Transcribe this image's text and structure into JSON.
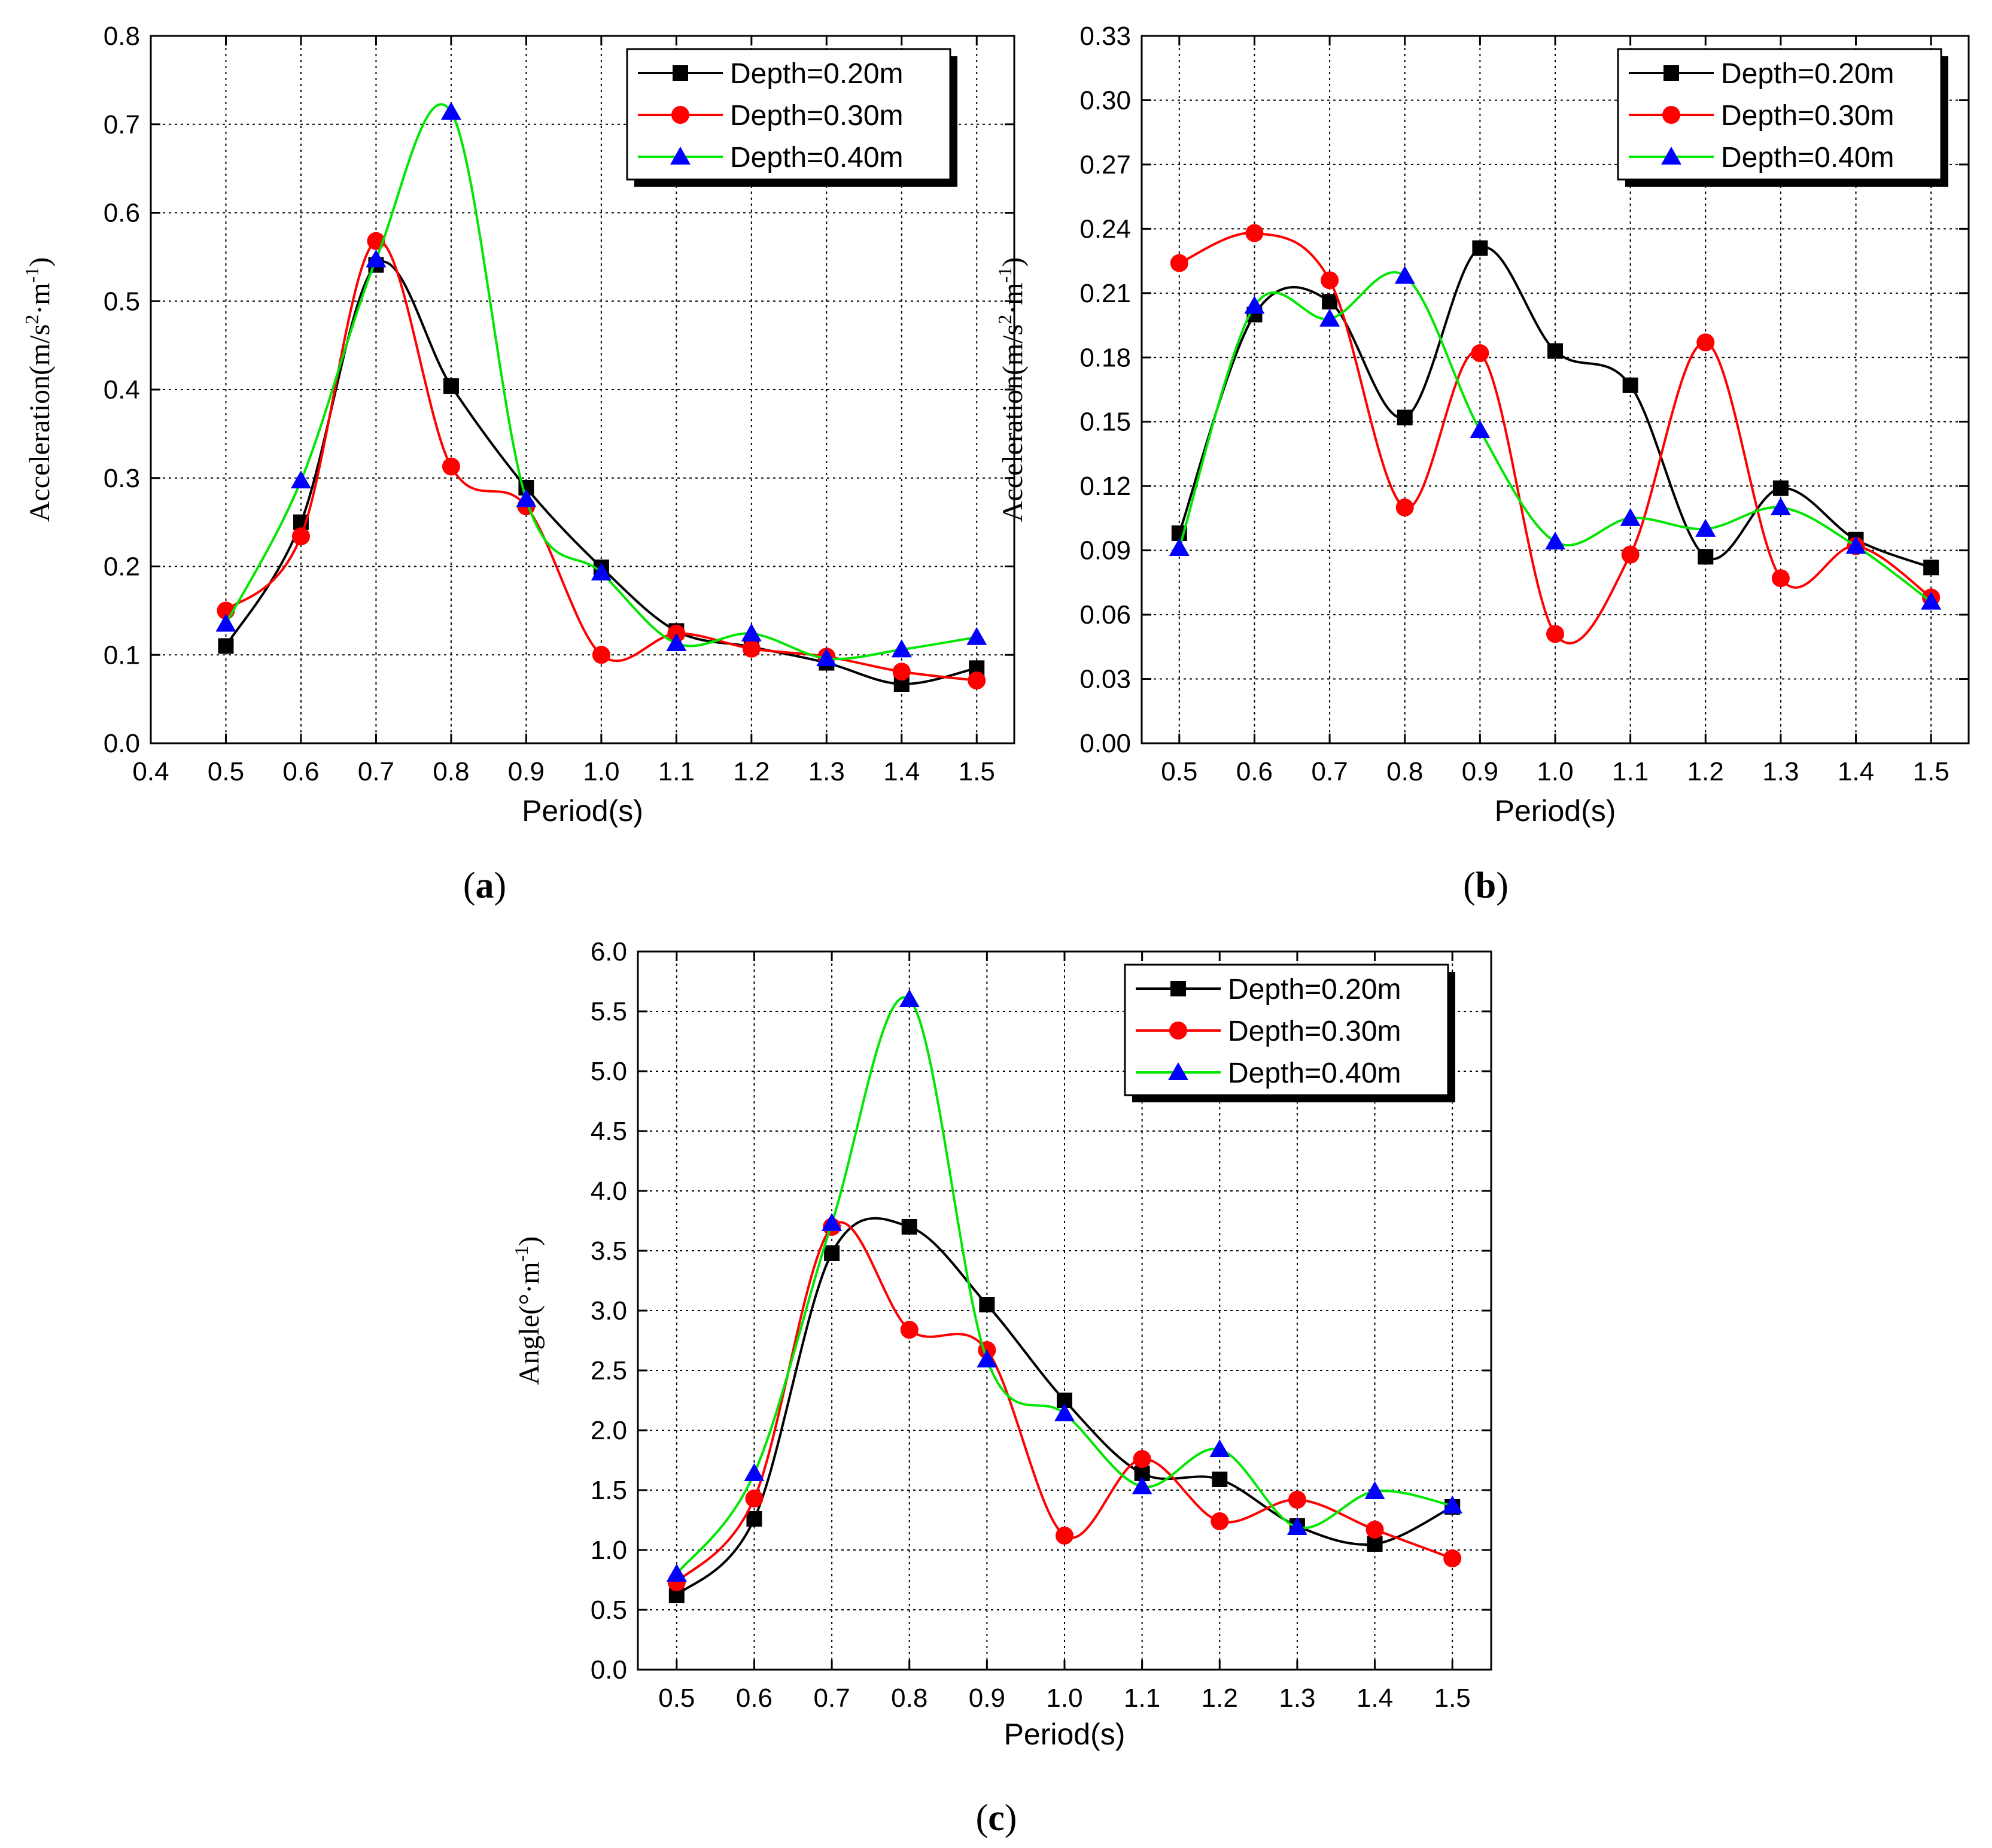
{
  "colors": {
    "depth_020": "#000000",
    "depth_030": "#ff0000",
    "depth_040": "#00e600",
    "depth_040_marker": "#0000ff",
    "grid": "#000000",
    "background": "#ffffff"
  },
  "chart_data": [
    {
      "type": "line",
      "panel": "a",
      "caption": {
        "open": "(",
        "letter": "a",
        "close": ")"
      },
      "title": "",
      "xlabel": "Period(s)",
      "ylabel": {
        "base": "Acceleration(m/s",
        "sup1": "2",
        "mid": "·m",
        "sup2": "-1",
        "end": ")"
      },
      "xlim": [
        0.4,
        1.55
      ],
      "ylim": [
        0.0,
        0.8
      ],
      "xticks": [
        "0.4",
        "0.5",
        "0.6",
        "0.7",
        "0.8",
        "0.9",
        "1.0",
        "1.1",
        "1.2",
        "1.3",
        "1.4",
        "1.5"
      ],
      "yticks": [
        "0.0",
        "0.1",
        "0.2",
        "0.3",
        "0.4",
        "0.5",
        "0.6",
        "0.7",
        "0.8"
      ],
      "grid": true,
      "legend_position": "top-right",
      "x": [
        0.5,
        0.6,
        0.7,
        0.8,
        0.9,
        1.0,
        1.1,
        1.2,
        1.3,
        1.4,
        1.5
      ],
      "series": [
        {
          "name": "Depth=0.20m",
          "marker": "square",
          "values": [
            0.11,
            0.25,
            0.541,
            0.404,
            0.289,
            0.199,
            0.127,
            0.109,
            0.091,
            0.067,
            0.085
          ]
        },
        {
          "name": "Depth=0.30m",
          "marker": "circle",
          "values": [
            0.15,
            0.234,
            0.568,
            0.313,
            0.268,
            0.1,
            0.124,
            0.107,
            0.098,
            0.081,
            0.071
          ]
        },
        {
          "name": "Depth=0.40m",
          "marker": "triangle",
          "values": [
            0.135,
            0.297,
            0.547,
            0.714,
            0.276,
            0.193,
            0.113,
            0.124,
            0.096,
            0.106,
            0.12
          ]
        }
      ]
    },
    {
      "type": "line",
      "panel": "b",
      "caption": {
        "open": "(",
        "letter": "b",
        "close": ")"
      },
      "title": "",
      "xlabel": "Period(s)",
      "ylabel": {
        "base": "Acceleration(m/s",
        "sup1": "2",
        "mid": "·m",
        "sup2": "-1",
        "end": ")"
      },
      "xlim": [
        0.45,
        1.55
      ],
      "ylim": [
        0.0,
        0.33
      ],
      "xticks": [
        "0.5",
        "0.6",
        "0.7",
        "0.8",
        "0.9",
        "1.0",
        "1.1",
        "1.2",
        "1.3",
        "1.4",
        "1.5"
      ],
      "yticks": [
        "0.00",
        "0.03",
        "0.06",
        "0.09",
        "0.12",
        "0.15",
        "0.18",
        "0.21",
        "0.24",
        "0.27",
        "0.30",
        "0.33"
      ],
      "grid": true,
      "legend_position": "top-right",
      "x": [
        0.5,
        0.6,
        0.7,
        0.8,
        0.9,
        1.0,
        1.1,
        1.2,
        1.3,
        1.4,
        1.5
      ],
      "series": [
        {
          "name": "Depth=0.20m",
          "marker": "square",
          "values": [
            0.098,
            0.2,
            0.206,
            0.152,
            0.231,
            0.183,
            0.167,
            0.087,
            0.119,
            0.095,
            0.082
          ]
        },
        {
          "name": "Depth=0.30m",
          "marker": "circle",
          "values": [
            0.224,
            0.238,
            0.216,
            0.11,
            0.182,
            0.051,
            0.088,
            0.187,
            0.077,
            0.092,
            0.068
          ]
        },
        {
          "name": "Depth=0.40m",
          "marker": "triangle",
          "values": [
            0.091,
            0.204,
            0.198,
            0.218,
            0.146,
            0.094,
            0.105,
            0.1,
            0.11,
            0.092,
            0.066
          ]
        }
      ]
    },
    {
      "type": "line",
      "panel": "c",
      "caption": {
        "open": "(",
        "letter": "c",
        "close": ")"
      },
      "title": "",
      "xlabel": "Period(s)",
      "ylabel": {
        "base": "Angle(°·m",
        "sup1": "",
        "mid": "",
        "sup2": "-1",
        "end": ")"
      },
      "xlim": [
        0.45,
        1.55
      ],
      "ylim": [
        0.0,
        6.0
      ],
      "xticks": [
        "0.5",
        "0.6",
        "0.7",
        "0.8",
        "0.9",
        "1.0",
        "1.1",
        "1.2",
        "1.3",
        "1.4",
        "1.5"
      ],
      "yticks": [
        "0.0",
        "0.5",
        "1.0",
        "1.5",
        "2.0",
        "2.5",
        "3.0",
        "3.5",
        "4.0",
        "4.5",
        "5.0",
        "5.5",
        "6.0"
      ],
      "grid": true,
      "legend_position": "top-right",
      "x": [
        0.5,
        0.6,
        0.7,
        0.8,
        0.9,
        1.0,
        1.1,
        1.2,
        1.3,
        1.4,
        1.5
      ],
      "series": [
        {
          "name": "Depth=0.20m",
          "marker": "square",
          "values": [
            0.62,
            1.26,
            3.48,
            3.7,
            3.05,
            2.25,
            1.64,
            1.59,
            1.2,
            1.05,
            1.36
          ]
        },
        {
          "name": "Depth=0.30m",
          "marker": "circle",
          "values": [
            0.73,
            1.43,
            3.7,
            2.84,
            2.67,
            1.12,
            1.76,
            1.24,
            1.42,
            1.17,
            0.93
          ]
        },
        {
          "name": "Depth=0.40m",
          "marker": "triangle",
          "values": [
            0.8,
            1.64,
            3.73,
            5.6,
            2.59,
            2.14,
            1.53,
            1.84,
            1.19,
            1.49,
            1.37
          ]
        }
      ]
    }
  ]
}
